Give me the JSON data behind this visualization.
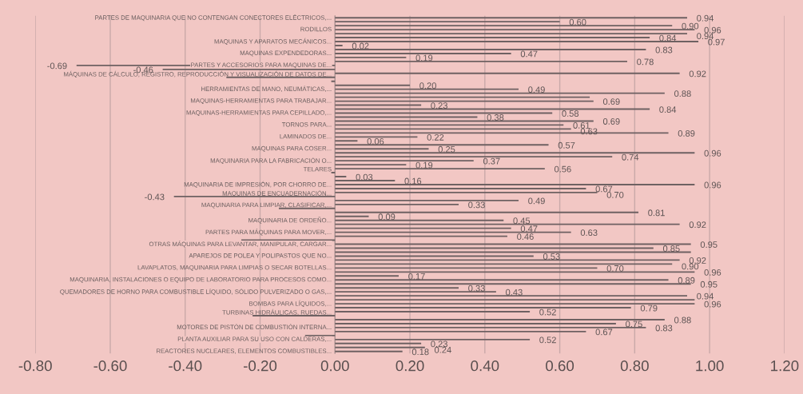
{
  "chart_data": {
    "type": "bar",
    "orientation": "horizontal",
    "categories": [
      "PARTES DE MAQUINARIA QUE NO CONTENGAN CONECTORES ELÉCTRICOS,...",
      null,
      null,
      "RODILLOS",
      null,
      null,
      "MAQUINAS Y APARATOS MECÁNICOS...",
      null,
      null,
      "MAQUINAS EXPENDEDORAS...",
      null,
      null,
      "PARTES Y ACCESORIOS PARA MAQUINAS DE...",
      null,
      null,
      "MÁQUINAS DE CÁLCULO, REGISTRO, REPRODUCCIÓN Y VISUALIZACIÓN DE DATOS DE...",
      null,
      null,
      "HERRAMIENTAS DE MANO, NEUMÁTICAS,...",
      null,
      null,
      "MAQUINAS-HERRAMIENTAS PARA TRABAJAR...",
      null,
      null,
      "MAQUINAS-HERRAMIENTAS PARA CEPILLADO,...",
      null,
      null,
      "TORNOS PARA...",
      null,
      null,
      "LAMINADOS DE...",
      null,
      null,
      "MAQUINAS PARA COSER...",
      null,
      null,
      "MAQUINARIA PARA LA FABRICACIÓN O...",
      null,
      null,
      "TELARES",
      null,
      null,
      "MAQUINARIA DE IMPRESIÓN, POR CHORRO DE...",
      null,
      null,
      "MAQUINAS DE ENCUADERNACIÓN...",
      null,
      null,
      "MAQUINARIA PARA LIMPIAR, CLASIFICAR,...",
      null,
      null,
      "MAQUINARIA DE ORDEÑO...",
      null,
      null,
      "PARTES PARA MÁQUINAS PARA MOVER,...",
      null,
      null,
      "OTRAS MÁQUINAS PARA LEVANTAR, MANIPULAR, CARGAR...",
      null,
      null,
      "APAREJOS DE POLEA Y POLIPASTOS QUE NO...",
      null,
      null,
      "LAVAPLATOS, MAQUINARIA PARA LIMPIAS O SECAR BOTELLAS...",
      null,
      null,
      "MAQUINARIA, INSTALACIONES O EQUIPO DE LABORATORIO PARA PROCESOS COMO...",
      null,
      null,
      "QUEMADORES DE HORNO PARA COMBUSTIBLE LÍQUIDO, SÓLIDO PULVERIZADO O GAS,...",
      null,
      null,
      "BOMBAS PARA LÍQUIDOS,...",
      null,
      null,
      "TURBINAS HIDRÁULICAS, RUEDAS...",
      null,
      null,
      "MOTORES DE PISTÓN DE COMBUSTIÓN INTERNA...",
      null,
      null,
      "PLANTA AUXILIAR PARA SU USO CON CALDERAS,...",
      null,
      null,
      "REACTORES NUCLEARES, ELEMENTOS COMBUSTIBLES..."
    ],
    "values": [
      0.94,
      0.6,
      0.9,
      0.96,
      0.94,
      0.84,
      0.97,
      0.02,
      0.83,
      0.47,
      0.19,
      0.78,
      -0.69,
      -0.46,
      0.92,
      -0.29,
      -0.01,
      0.2,
      0.49,
      0.88,
      0.68,
      0.69,
      0.23,
      0.84,
      0.58,
      0.38,
      0.69,
      0.61,
      0.63,
      0.89,
      0.22,
      0.06,
      0.57,
      0.25,
      0.96,
      0.74,
      0.37,
      0.19,
      0.56,
      -0.01,
      0.03,
      0.16,
      0.96,
      0.67,
      0.7,
      -0.43,
      0.49,
      0.33,
      -0.15,
      0.81,
      0.09,
      0.45,
      0.92,
      0.47,
      0.63,
      0.46,
      -0.25,
      0.95,
      0.85,
      0.95,
      0.53,
      0.92,
      0.9,
      0.7,
      0.96,
      0.17,
      0.89,
      0.95,
      0.33,
      0.43,
      0.94,
      0.96,
      0.96,
      0.79,
      0.52,
      -0.22,
      0.88,
      0.75,
      0.83,
      0.67,
      -0.08,
      0.52,
      0.23,
      0.24,
      0.18
    ],
    "value_labels": [
      "0.94",
      "0.60",
      "0.90",
      "0.96",
      "0.94",
      "0.84",
      "0.97",
      "0.02",
      "0.83",
      "0.47",
      "0.19",
      "0.78",
      "-0.69",
      "-0.46",
      "0.92",
      null,
      null,
      "0.20",
      "0.49",
      "0.88",
      null,
      "0.69",
      "0.23",
      "0.84",
      "0.58",
      "0.38",
      "0.69",
      "0.61",
      "0.63",
      "0.89",
      "0.22",
      "0.06",
      "0.57",
      "0.25",
      "0.96",
      "0.74",
      "0.37",
      "0.19",
      "0.56",
      null,
      "0.03",
      "0.16",
      "0.96",
      "0.67",
      "0.70",
      "-0.43",
      "0.49",
      "0.33",
      null,
      "0.81",
      "0.09",
      "0.45",
      "0.92",
      "0.47",
      "0.63",
      "0.46",
      null,
      "0.95",
      "0.85",
      null,
      "0.53",
      "0.92",
      "0.90",
      "0.70",
      "0.96",
      "0.17",
      "0.89",
      "0.95",
      "0.33",
      "0.43",
      "0.94",
      null,
      "0.96",
      "0.79",
      "0.52",
      null,
      "0.88",
      "0.75",
      "0.83",
      "0.67",
      null,
      "0.52",
      "0.23",
      "0.24",
      "0.18"
    ],
    "color": "#6e6162",
    "xlim": [
      -0.8,
      1.2
    ],
    "xticks": [
      {
        "value": -0.8,
        "label": "-0.80"
      },
      {
        "value": -0.6,
        "label": "-0.60"
      },
      {
        "value": -0.4,
        "label": "-0.40"
      },
      {
        "value": -0.2,
        "label": "-0.20"
      },
      {
        "value": 0,
        "label": "0.00"
      },
      {
        "value": 0.2,
        "label": "0.20"
      },
      {
        "value": 0.4,
        "label": "0.40"
      },
      {
        "value": 0.6,
        "label": "0.60"
      },
      {
        "value": 0.8,
        "label": "0.80"
      },
      {
        "value": 1.0,
        "label": "1.00"
      },
      {
        "value": 1.2,
        "label": "1.20"
      }
    ],
    "grid": "x"
  }
}
